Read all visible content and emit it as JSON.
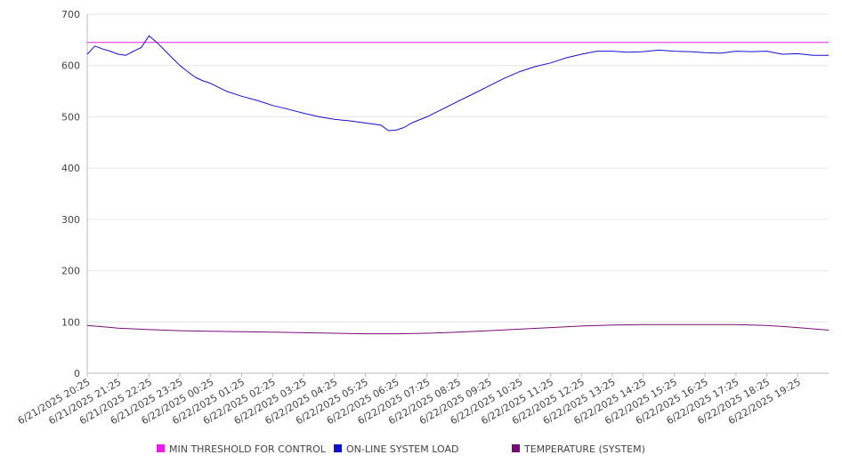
{
  "chart_data": {
    "type": "line",
    "title": "",
    "xlabel": "",
    "ylabel": "",
    "ylim": [
      0,
      700
    ],
    "y_ticks": [
      0,
      100,
      200,
      300,
      400,
      500,
      600,
      700
    ],
    "x_tick_labels": [
      "6/21/2025 20:25",
      "6/21/2025 21:25",
      "6/21/2025 22:25",
      "6/21/2025 23:25",
      "6/22/2025 00:25",
      "6/22/2025 01:25",
      "6/22/2025 02:25",
      "6/22/2025 03:25",
      "6/22/2025 04:25",
      "6/22/2025 05:25",
      "6/22/2025 06:25",
      "6/22/2025 07:25",
      "6/22/2025 08:25",
      "6/22/2025 09:25",
      "6/22/2025 10:25",
      "6/22/2025 11:25",
      "6/22/2025 12:25",
      "6/22/2025 13:25",
      "6/22/2025 14:25",
      "6/22/2025 15:25",
      "6/22/2025 16:25",
      "6/22/2025 17:25",
      "6/22/2025 18:25",
      "6/22/2025 19:25"
    ],
    "grid": "horizontal",
    "legend_position": "bottom",
    "series": [
      {
        "name": "MIN THRESHOLD FOR CONTROL",
        "color": "#e81ee8",
        "x": [
          "6/21/2025 20:25",
          "6/22/2025 20:25"
        ],
        "values": [
          645,
          645
        ]
      },
      {
        "name": "ON-LINE SYSTEM LOAD",
        "color": "#1010d0",
        "x": [
          "6/21/2025 20:25",
          "6/21/2025 20:40",
          "6/21/2025 20:55",
          "6/21/2025 21:10",
          "6/21/2025 21:25",
          "6/21/2025 21:40",
          "6/21/2025 21:55",
          "6/21/2025 22:10",
          "6/21/2025 22:25",
          "6/21/2025 22:40",
          "6/21/2025 22:55",
          "6/21/2025 23:10",
          "6/21/2025 23:25",
          "6/21/2025 23:40",
          "6/21/2025 23:55",
          "6/22/2025 00:10",
          "6/22/2025 00:25",
          "6/22/2025 00:55",
          "6/22/2025 01:25",
          "6/22/2025 01:55",
          "6/22/2025 02:25",
          "6/22/2025 02:55",
          "6/22/2025 03:25",
          "6/22/2025 03:55",
          "6/22/2025 04:25",
          "6/22/2025 04:55",
          "6/22/2025 05:25",
          "6/22/2025 05:55",
          "6/22/2025 06:10",
          "6/22/2025 06:25",
          "6/22/2025 06:40",
          "6/22/2025 06:55",
          "6/22/2025 07:25",
          "6/22/2025 07:55",
          "6/22/2025 08:25",
          "6/22/2025 08:55",
          "6/22/2025 09:25",
          "6/22/2025 09:55",
          "6/22/2025 10:25",
          "6/22/2025 10:55",
          "6/22/2025 11:25",
          "6/22/2025 11:55",
          "6/22/2025 12:25",
          "6/22/2025 12:55",
          "6/22/2025 13:25",
          "6/22/2025 13:55",
          "6/22/2025 14:25",
          "6/22/2025 14:55",
          "6/22/2025 15:25",
          "6/22/2025 15:55",
          "6/22/2025 16:25",
          "6/22/2025 16:55",
          "6/22/2025 17:25",
          "6/22/2025 17:55",
          "6/22/2025 18:25",
          "6/22/2025 18:55",
          "6/22/2025 19:25",
          "6/22/2025 19:55",
          "6/22/2025 20:25"
        ],
        "values": [
          622,
          638,
          632,
          628,
          622,
          620,
          628,
          635,
          658,
          645,
          630,
          615,
          600,
          588,
          577,
          570,
          565,
          550,
          540,
          532,
          522,
          515,
          507,
          500,
          495,
          492,
          488,
          484,
          473,
          474,
          479,
          488,
          500,
          515,
          530,
          545,
          560,
          575,
          588,
          598,
          605,
          615,
          622,
          628,
          628,
          626,
          627,
          630,
          628,
          627,
          625,
          624,
          628,
          627,
          628,
          622,
          623,
          620,
          620
        ]
      },
      {
        "name": "TEMPERATURE (SYSTEM)",
        "color": "#7a0a78",
        "x": [
          "6/21/2025 20:25",
          "6/21/2025 21:25",
          "6/21/2025 22:25",
          "6/21/2025 23:25",
          "6/22/2025 00:25",
          "6/22/2025 01:25",
          "6/22/2025 02:25",
          "6/22/2025 03:25",
          "6/22/2025 04:25",
          "6/22/2025 05:25",
          "6/22/2025 06:25",
          "6/22/2025 07:25",
          "6/22/2025 08:25",
          "6/22/2025 09:25",
          "6/22/2025 10:25",
          "6/22/2025 11:25",
          "6/22/2025 12:25",
          "6/22/2025 13:25",
          "6/22/2025 14:25",
          "6/22/2025 15:25",
          "6/22/2025 16:25",
          "6/22/2025 17:25",
          "6/22/2025 18:25",
          "6/22/2025 19:25",
          "6/22/2025 20:25"
        ],
        "values": [
          93,
          88,
          85,
          83,
          82,
          81,
          80,
          79,
          78,
          77,
          77,
          78,
          80,
          83,
          86,
          89,
          92,
          94,
          95,
          95,
          95,
          95,
          93,
          89,
          84
        ]
      }
    ]
  }
}
